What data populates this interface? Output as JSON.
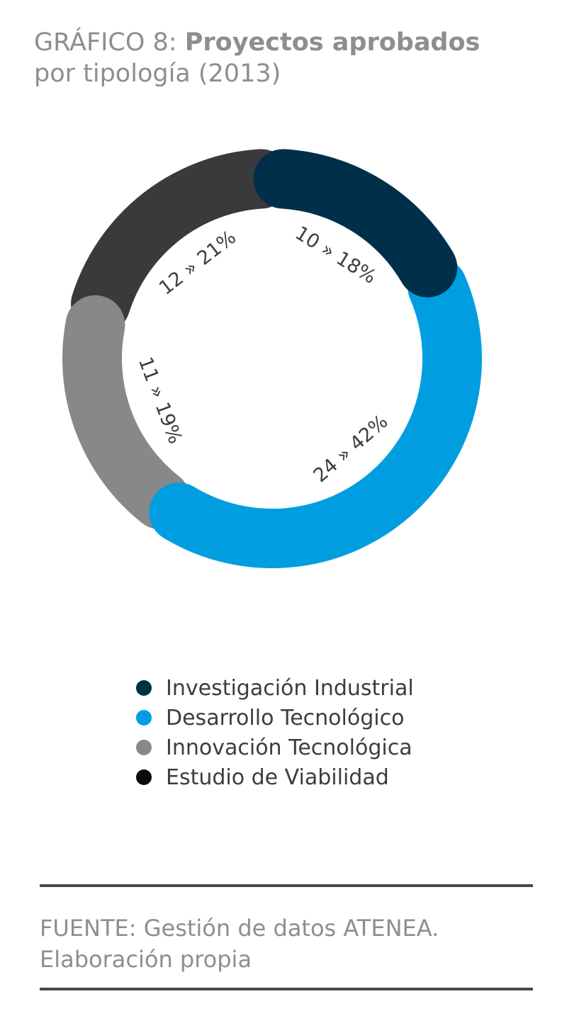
{
  "chart_data": {
    "type": "pie",
    "title_prefix": "GRÁFICO 8:",
    "title_bold": "Proyectos aprobados",
    "subtitle": "por tipología (2013)",
    "slices": [
      {
        "name": "Investigación Industrial",
        "count": 10,
        "percent": 18,
        "label": "10 » 18%",
        "color": "#002f4a"
      },
      {
        "name": "Desarrollo Tecnológico",
        "count": 24,
        "percent": 42,
        "label": "24 » 42%",
        "color": "#009ee0"
      },
      {
        "name": "Innovación Tecnológica",
        "count": 11,
        "percent": 19,
        "label": "11 » 19%",
        "color": "#87888a"
      },
      {
        "name": "Estudio de Viabilidad",
        "count": 12,
        "percent": 21,
        "label": "12 » 21%",
        "color": "#3a3a3c"
      }
    ],
    "legend": [
      {
        "label": "Investigación Industrial",
        "color": "#002f4a"
      },
      {
        "label": "Desarrollo Tecnológico",
        "color": "#009ee0"
      },
      {
        "label": "Innovación Tecnológica",
        "color": "#87888a"
      },
      {
        "label": "Estudio de Viabilidad",
        "color": "#0a0a0a"
      }
    ],
    "source_line1": "FUENTE: Gestión de datos ATENEA.",
    "source_line2": "Elaboración propia"
  }
}
